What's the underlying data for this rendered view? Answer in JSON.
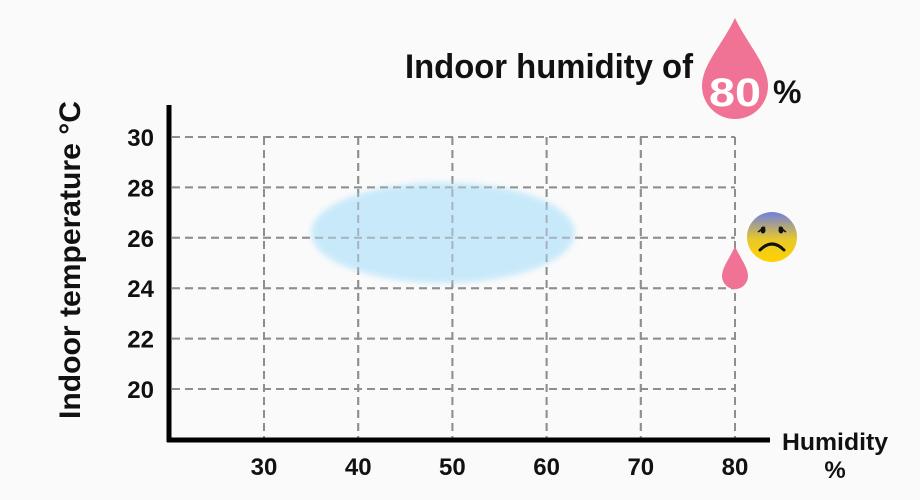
{
  "chart_data": {
    "type": "scatter",
    "title": "Indoor humidity of",
    "title_value": "80",
    "title_unit": "%",
    "xlabel": "Humidity",
    "xlabel_unit": "%",
    "ylabel": "Indoor temperature °C",
    "xlim": [
      20,
      85
    ],
    "ylim": [
      18.8,
      31.3
    ],
    "x_ticks": [
      "30",
      "40",
      "50",
      "60",
      "70",
      "80"
    ],
    "y_ticks": [
      "30",
      "28",
      "26",
      "24",
      "22",
      "20"
    ],
    "grid": true,
    "comfort_zone": {
      "shape": "ellipse",
      "humidity_range": [
        35,
        63
      ],
      "temperature_range": [
        24.2,
        28.2
      ],
      "color": "#c6e9fb"
    },
    "marker": {
      "humidity": 80,
      "temperature": 24.6,
      "icon": "water-drop-icon",
      "color": "#f07395"
    },
    "mood_icon": "sad-face-emoji-icon",
    "colors": {
      "drop": "#f07395",
      "grid": "#8e8e8e",
      "axis": "#000000"
    }
  }
}
